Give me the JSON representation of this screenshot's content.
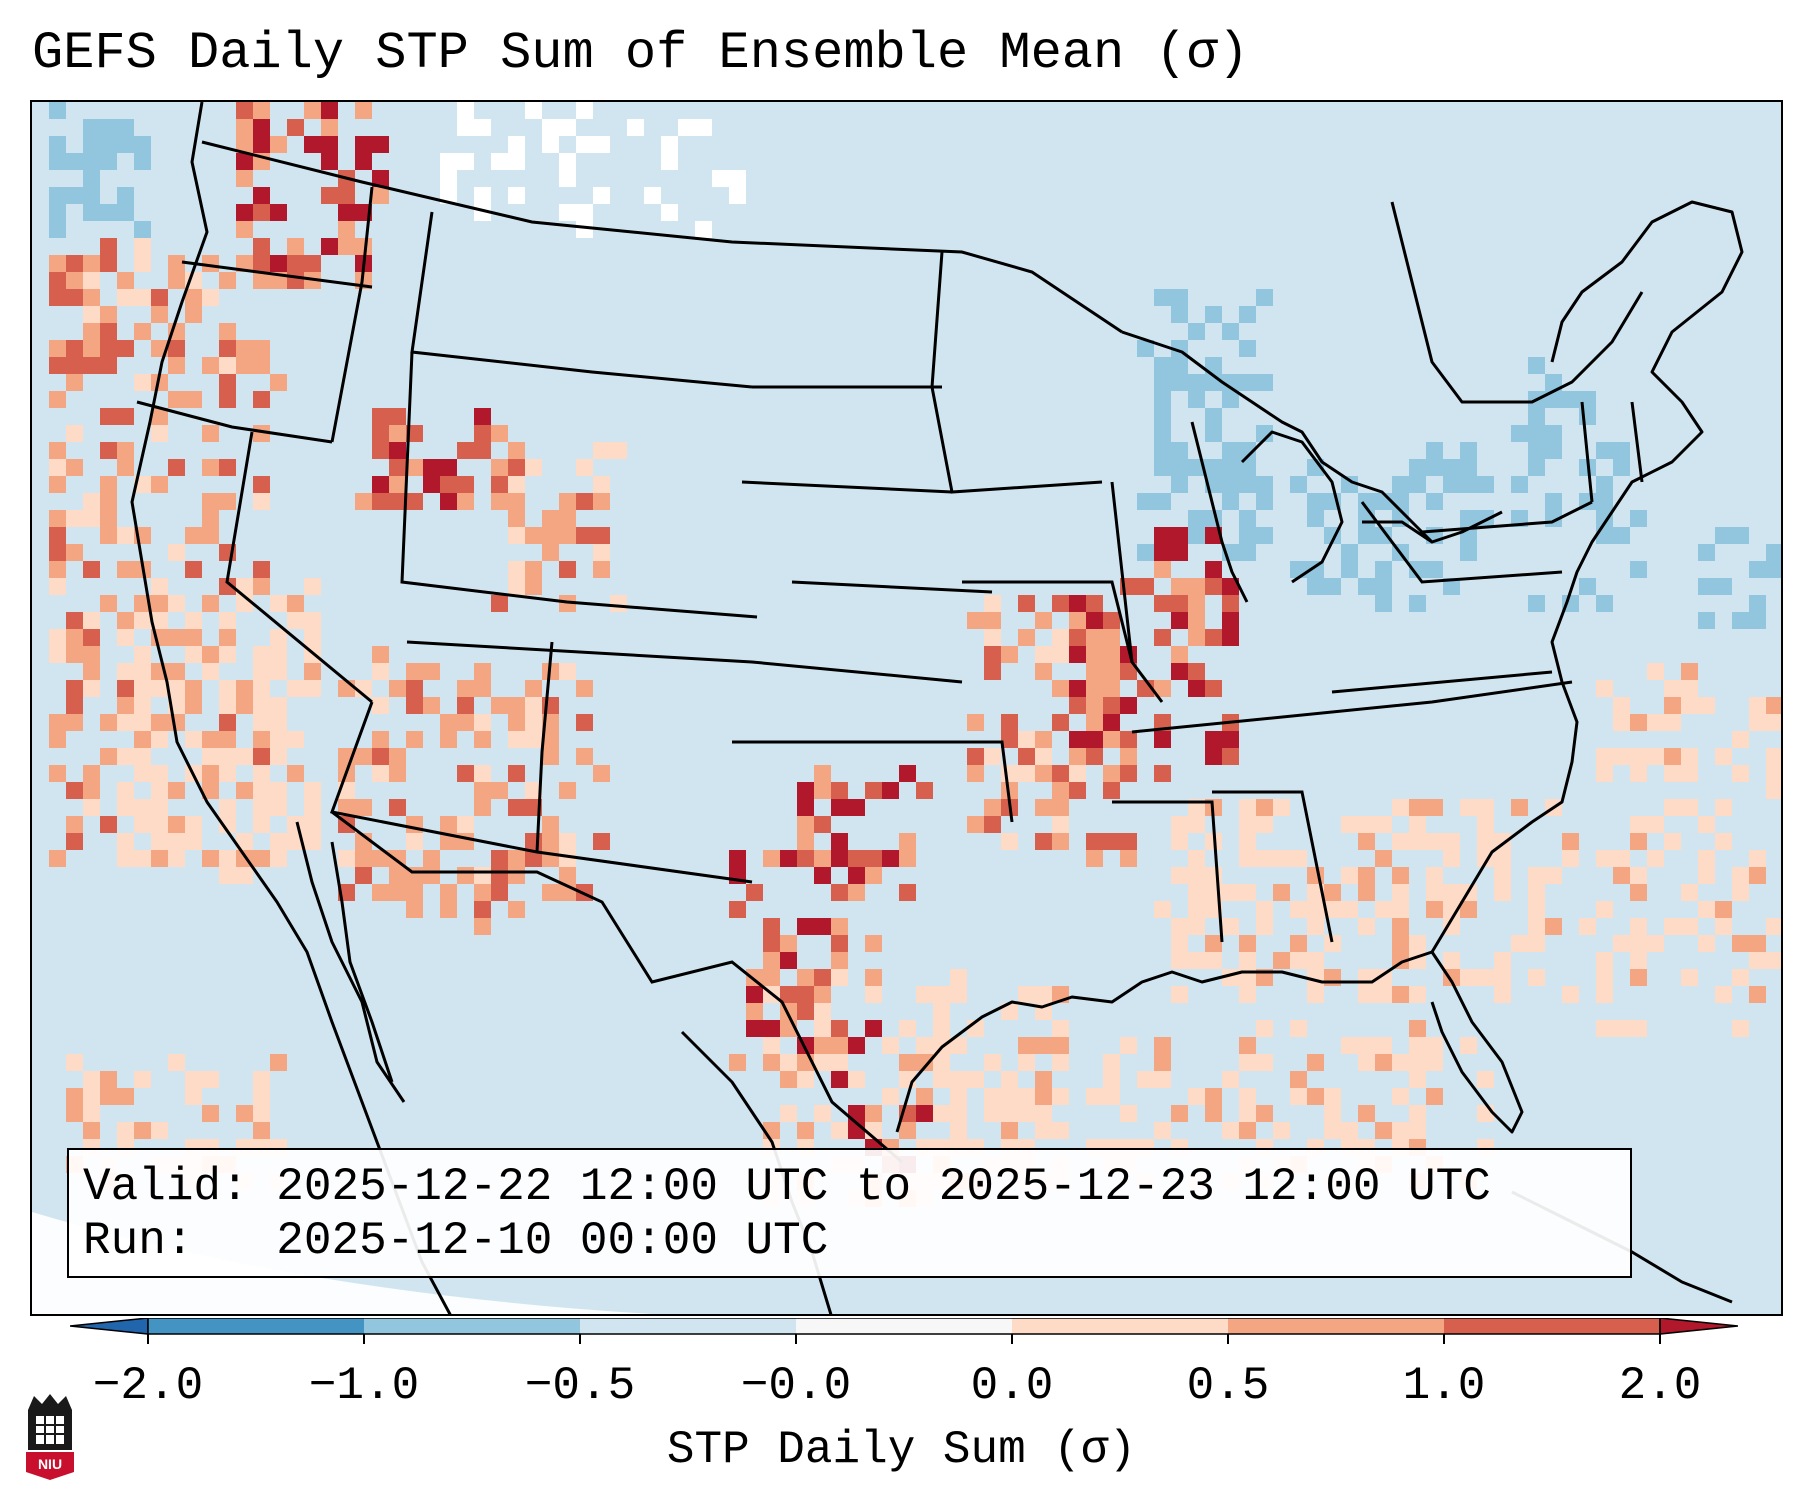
{
  "title": "GEFS Daily STP Sum of Ensemble Mean (σ)",
  "info": {
    "valid_label": "Valid:",
    "valid_range": "2025-12-22 12:00 UTC to 2025-12-23 12:00 UTC",
    "run_label": "Run:",
    "run_time": "2025-12-10 00:00 UTC"
  },
  "colorbar": {
    "label": "STP Daily Sum (σ)",
    "ticks": [
      "−2.0",
      "−1.0",
      "−0.5",
      "−0.0",
      "0.0",
      "0.5",
      "1.0",
      "2.0"
    ],
    "colors": [
      "#4393c3",
      "#92c5de",
      "#d1e5f0",
      "#f7f7f7",
      "#fddbc7",
      "#f4a582",
      "#d6604d"
    ],
    "extend_low": "#2166ac",
    "extend_high": "#b2182b"
  },
  "logo": {
    "text": "NIU"
  },
  "map_region": "CONUS"
}
